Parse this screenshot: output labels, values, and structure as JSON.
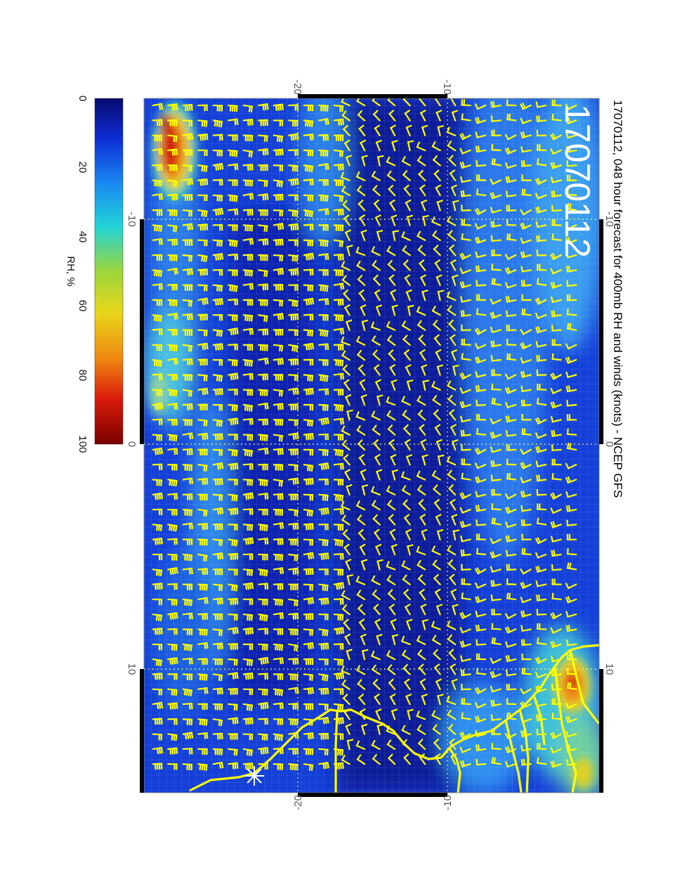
{
  "title": "17070112, 048 hour forecast for 400mb RH and winds (knots) - NCEP GFS",
  "stamp": "17070112",
  "colorbar": {
    "label": "RH, %",
    "ticks": [
      "0",
      "20",
      "40",
      "60",
      "80",
      "100"
    ],
    "colors": [
      "#08086e",
      "#0d2fd6",
      "#1a8cf0",
      "#22d3d8",
      "#9bd63c",
      "#e8d51a",
      "#f08a12",
      "#d81a0a",
      "#7a0000"
    ]
  },
  "axes": {
    "top_ticks": [
      "-20",
      "-10"
    ],
    "bottom_ticks": [
      "-20",
      "-10"
    ],
    "left_ticks": [
      "-10",
      "0",
      "10"
    ],
    "right_ticks": [
      "-10",
      "0",
      "10"
    ]
  },
  "map": {
    "coastline_color": "#ffff00",
    "barb_color": "#ffff00",
    "grid_color": "#ffff55",
    "station_marker": "star-marker"
  }
}
